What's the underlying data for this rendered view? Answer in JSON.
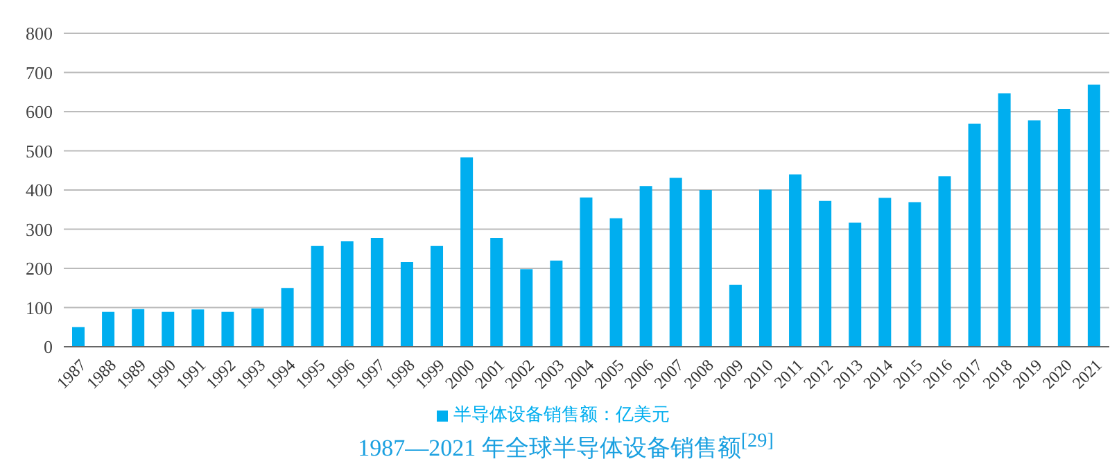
{
  "chart_data": {
    "type": "bar",
    "title": "1987—2021 年全球半导体设备销售额$^{[29]}$",
    "categories": [
      "1987",
      "1988",
      "1989",
      "1990",
      "1991",
      "1992",
      "1993",
      "1994",
      "1995",
      "1996",
      "1997",
      "1998",
      "1999",
      "2000",
      "2001",
      "2002",
      "2003",
      "2004",
      "2005",
      "2006",
      "2007",
      "2008",
      "2009",
      "2010",
      "2011",
      "2012",
      "2013",
      "2014",
      "2015",
      "2016",
      "2017",
      "2018",
      "2019",
      "2020",
      "2021"
    ],
    "series": [
      {
        "name": "半导体设备销售额：亿美元",
        "color": "#00aeef",
        "values": [
          50,
          89,
          96,
          89,
          95,
          89,
          98,
          150,
          257,
          269,
          278,
          216,
          257,
          483,
          278,
          198,
          220,
          381,
          328,
          410,
          431,
          400,
          158,
          401,
          440,
          372,
          317,
          380,
          369,
          435,
          569,
          647,
          578,
          607,
          669
        ]
      }
    ],
    "ylim": [
      0,
      800
    ],
    "yticks": [
      0,
      100,
      200,
      300,
      400,
      500,
      600,
      700,
      800
    ],
    "grid": "y",
    "legend": "bottom"
  }
}
